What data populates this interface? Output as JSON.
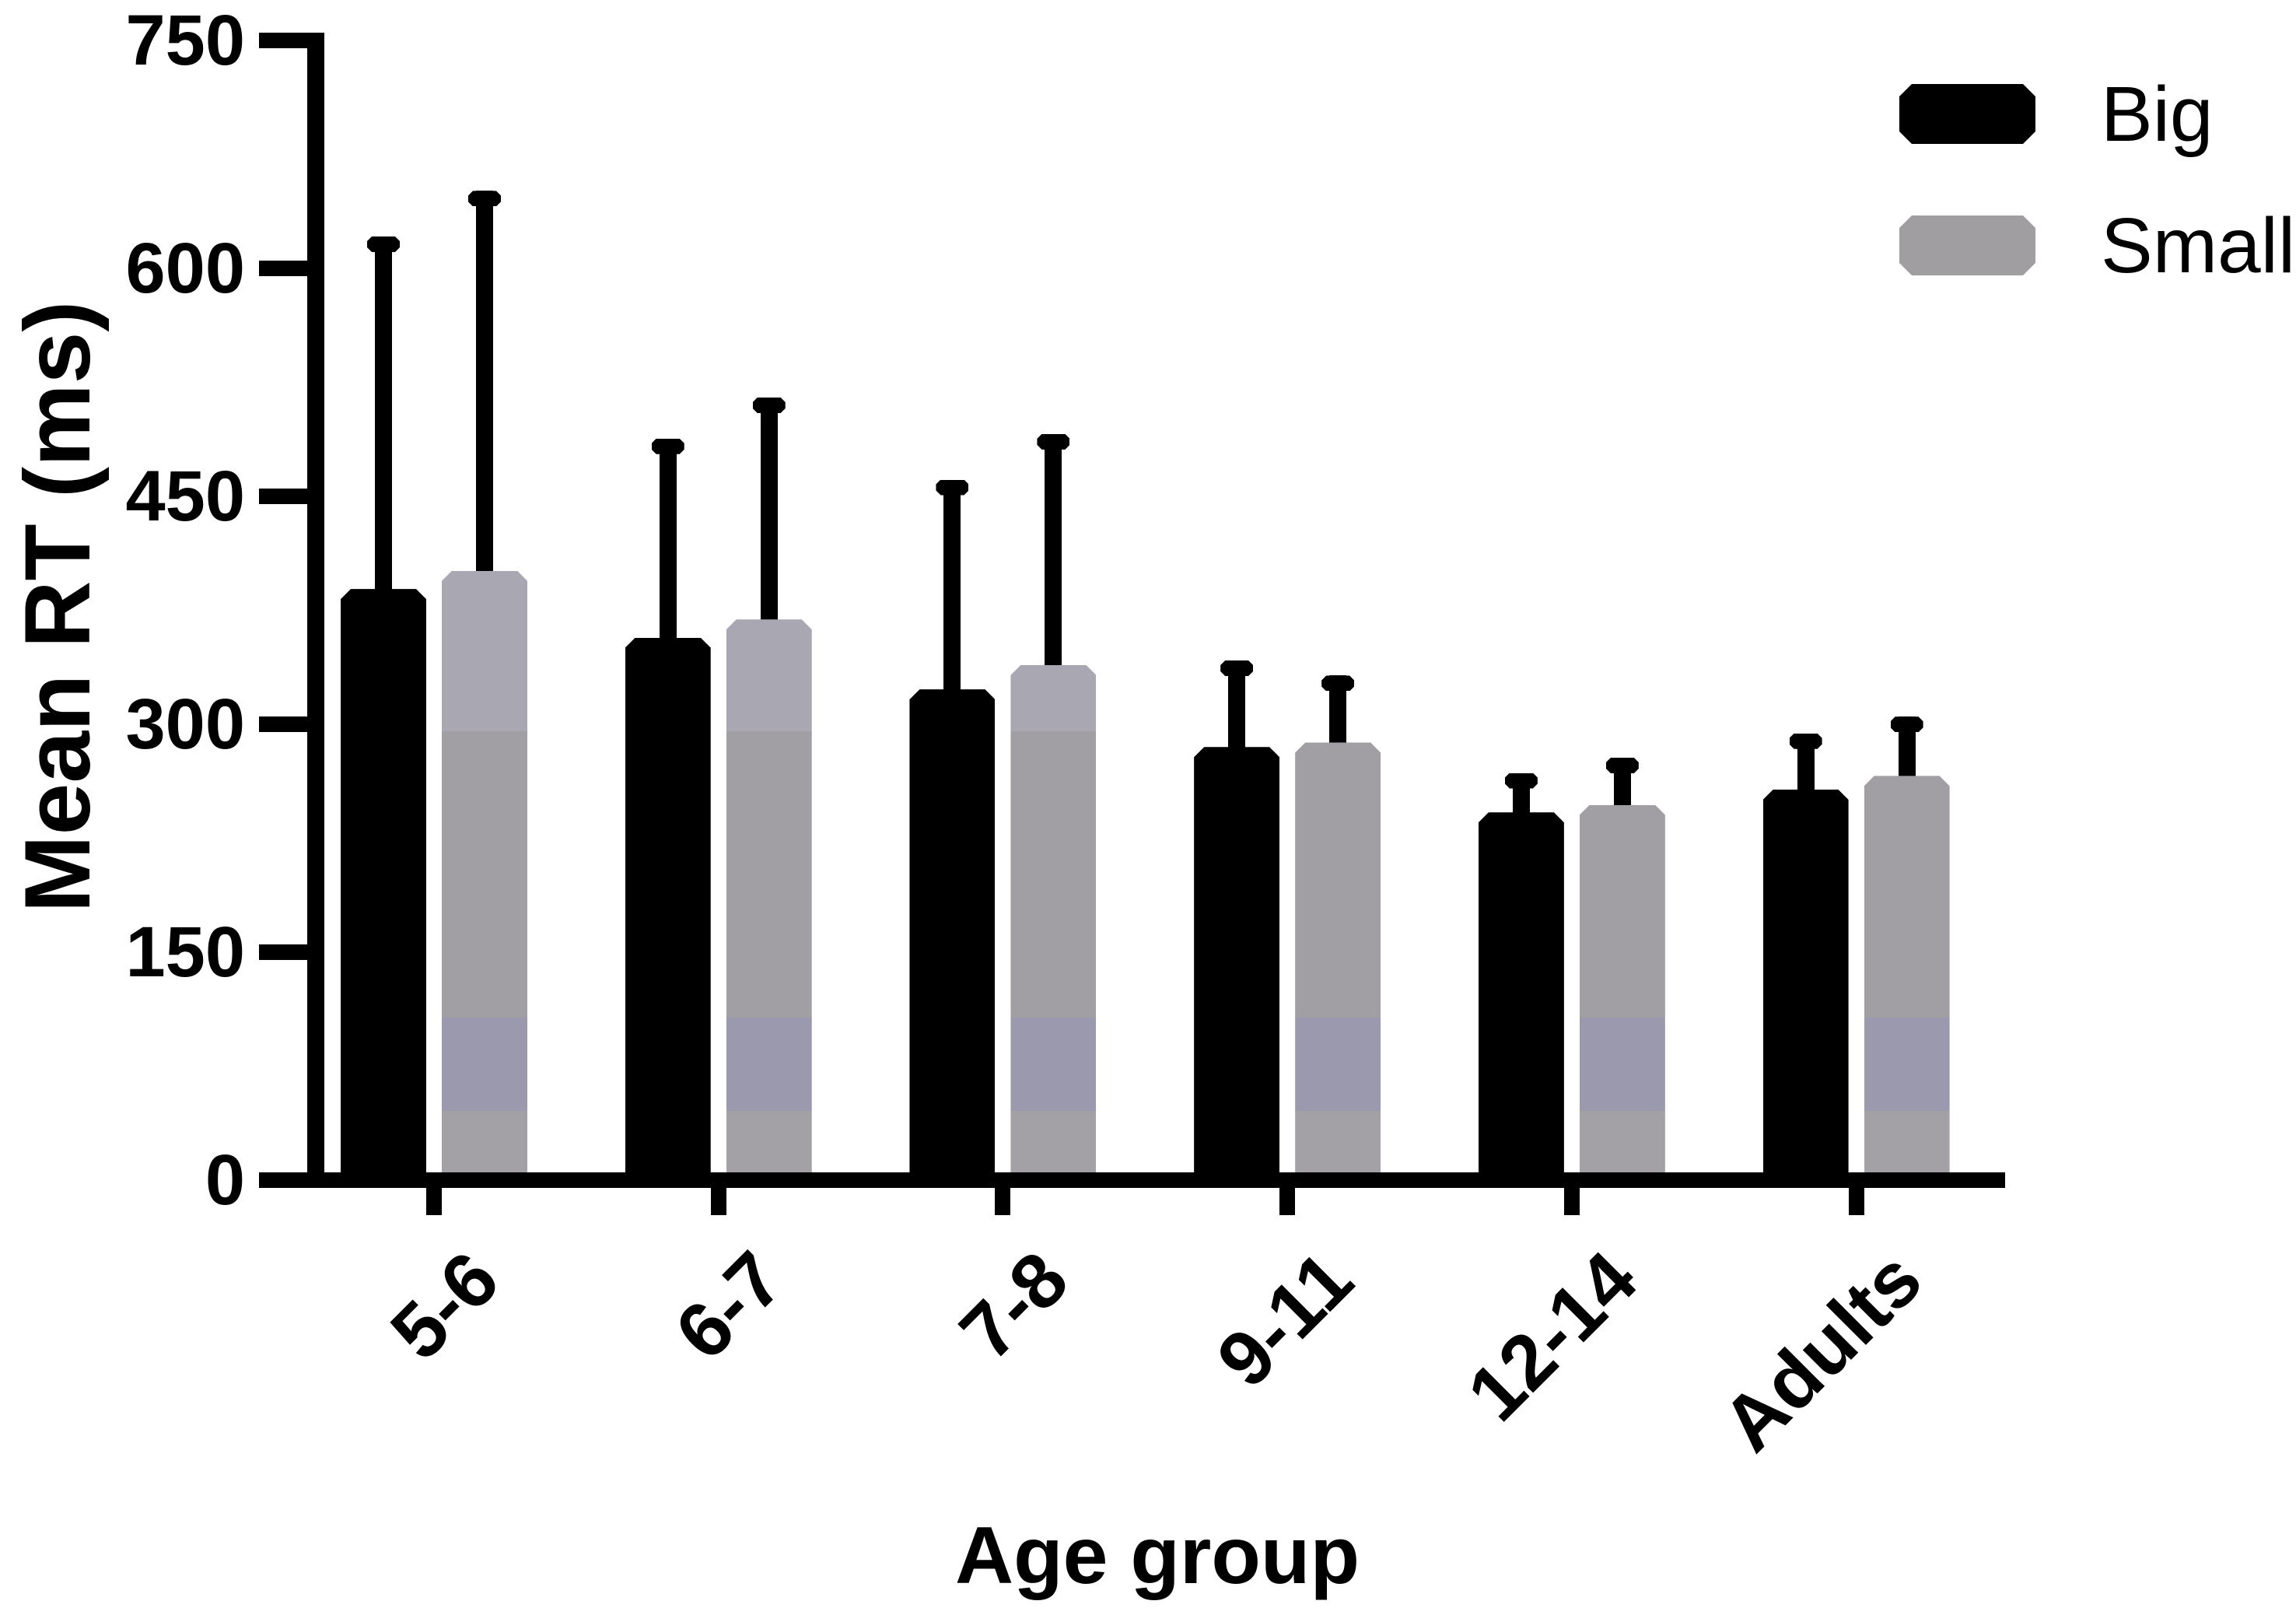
{
  "figure": {
    "background": "#ffffff",
    "y_axis": {
      "title": "Mean RT (ms)",
      "tick_values": [
        0,
        150,
        300,
        450,
        600,
        750
      ]
    },
    "x_axis": {
      "title": "Age group"
    },
    "legend": {
      "position": "top-right",
      "items": [
        {
          "label": "Big",
          "color": "#000000"
        },
        {
          "label": "Small",
          "color": "#a09ea1"
        }
      ]
    }
  },
  "chart_data": {
    "type": "bar",
    "title": "",
    "categories": [
      "5-6",
      "6-7",
      "7-8",
      "9-11",
      "12-14",
      "Adults"
    ],
    "series": [
      {
        "name": "Big",
        "color": "#000000",
        "values": [
          389,
          357,
          323,
          285,
          242,
          257
        ],
        "error_up": [
          232,
          131,
          138,
          57,
          26,
          37
        ]
      },
      {
        "name": "Small",
        "color": "#a19fa4",
        "values": [
          401,
          369,
          339,
          288,
          247,
          266
        ],
        "error_up": [
          250,
          146,
          152,
          44,
          31,
          39
        ]
      }
    ],
    "xlabel": "Age group",
    "ylabel": "Mean RT (ms)",
    "ylim": [
      0,
      750
    ],
    "y_ticks": [
      0,
      150,
      300,
      450,
      600,
      750
    ],
    "grid": false,
    "legend_position": "top-right",
    "error_bars": "upper-only"
  }
}
